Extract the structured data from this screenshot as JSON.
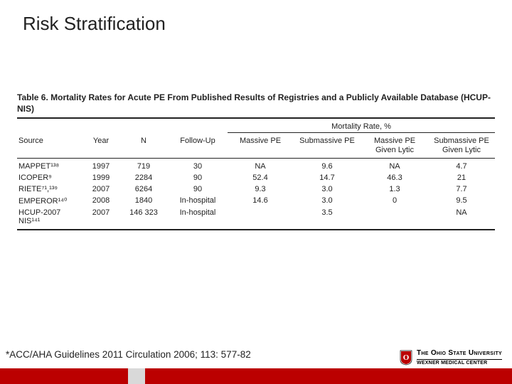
{
  "title": "Risk Stratification",
  "table": {
    "caption": "Table 6.   Mortality Rates for Acute PE From Published Results of Registries and a Publicly Available Database (HCUP-NIS)",
    "group_header": "Mortality Rate, %",
    "columns": {
      "source": "Source",
      "year": "Year",
      "n": "N",
      "followup": "Follow-Up",
      "massive": "Massive PE",
      "submassive": "Submassive PE",
      "massive_lytic_l1": "Massive PE",
      "massive_lytic_l2": "Given Lytic",
      "submassive_lytic_l1": "Submassive PE",
      "submassive_lytic_l2": "Given Lytic"
    },
    "rows": [
      {
        "source": "MAPPET¹³⁸",
        "year": "1997",
        "n": "719",
        "fu": "30",
        "massive": "NA",
        "sub": "9.6",
        "ml": "NA",
        "sl": "4.7"
      },
      {
        "source": "ICOPER⁹",
        "year": "1999",
        "n": "2284",
        "fu": "90",
        "massive": "52.4",
        "sub": "14.7",
        "ml": "46.3",
        "sl": "21"
      },
      {
        "source": "RIETE⁷¹,¹³⁹",
        "year": "2007",
        "n": "6264",
        "fu": "90",
        "massive": "9.3",
        "sub": "3.0",
        "ml": "1.3",
        "sl": "7.7"
      },
      {
        "source": "EMPEROR¹⁴⁰",
        "year": "2008",
        "n": "1840",
        "fu": "In-hospital",
        "massive": "14.6",
        "sub": "3.0",
        "ml": "0",
        "sl": "9.5"
      },
      {
        "source": "HCUP-2007 NIS¹⁴¹",
        "year": "2007",
        "n": "146 323",
        "fu": "In-hospital",
        "massive": "",
        "sub": "3.5",
        "ml": "",
        "sl": "NA"
      }
    ]
  },
  "citation": "*ACC/AHA Guidelines 2011  Circulation 2006; 113: 577-82",
  "logo": {
    "line1": "The Ohio State University",
    "line2": "WEXNER MEDICAL CENTER",
    "shield_fill": "#bb0000",
    "shield_letter": "O"
  },
  "colors": {
    "brand_red": "#bb0000",
    "gray": "#d9d9d9"
  }
}
